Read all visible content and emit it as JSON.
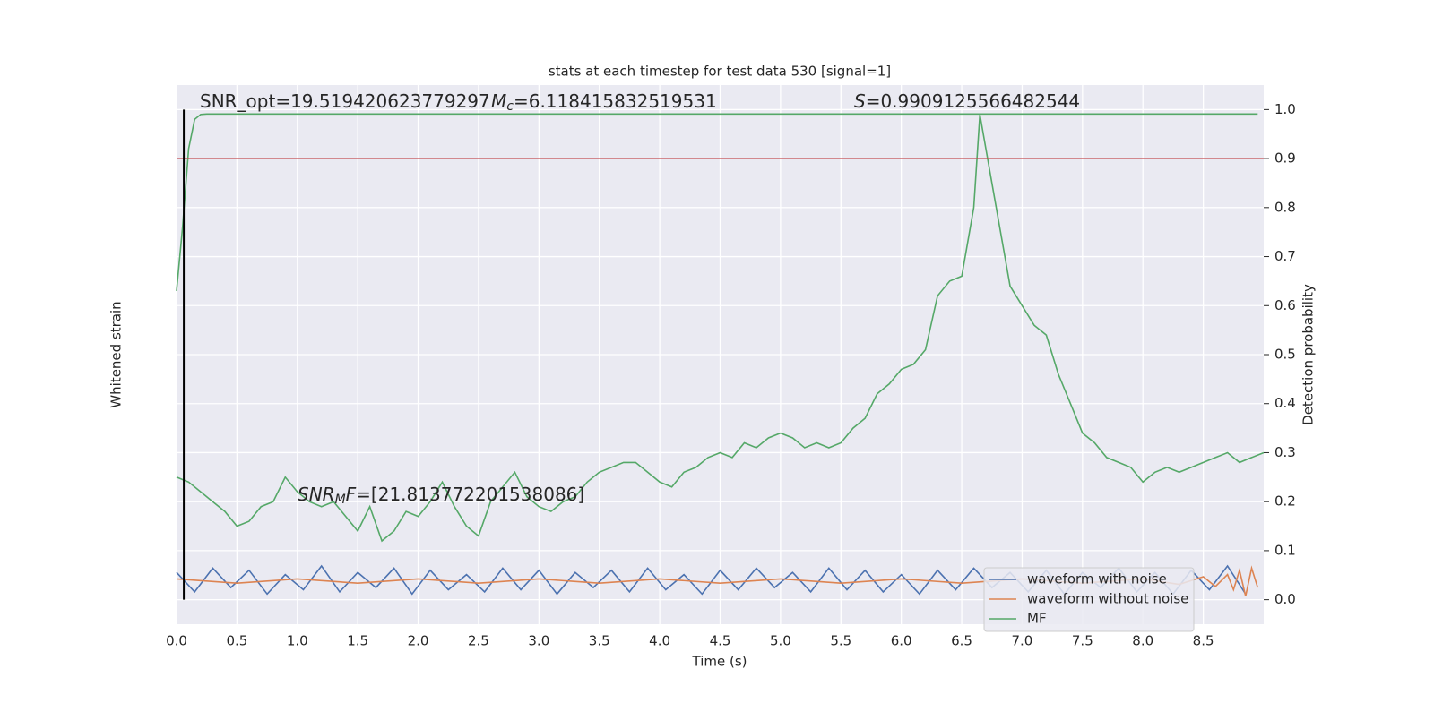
{
  "chart_data": {
    "type": "line",
    "title": "stats at each timestep for test data 530 [signal=1]",
    "xlabel": "Time (s)",
    "ylabel": "Detection probability",
    "y2label": "Whitened strain",
    "xlim": [
      0,
      9.0
    ],
    "xticks": [
      {
        "value": 0,
        "label": "0.0"
      },
      0.5,
      {
        "value": 1,
        "label": "1.0"
      },
      1.5,
      {
        "value": 2,
        "label": "2.0"
      },
      2.5,
      {
        "value": 3,
        "label": "3.0"
      },
      3.5,
      {
        "value": 4,
        "label": "4.0"
      },
      4.5,
      {
        "value": 5,
        "label": "5.0"
      },
      5.5,
      {
        "value": 6,
        "label": "6.0"
      },
      6.5,
      {
        "value": 7,
        "label": "7.0"
      },
      7.5,
      {
        "value": 8,
        "label": "8.0"
      },
      8.5
    ],
    "ylim": [
      -0.05,
      1.05
    ],
    "yticks": [
      {
        "value": 0,
        "label": "0.0"
      },
      0.1,
      0.2,
      0.3,
      0.4,
      0.5,
      0.6,
      0.7,
      0.8,
      0.9,
      {
        "value": 1,
        "label": "1.0"
      }
    ],
    "y2lim": [
      -2,
      23
    ],
    "grid": true,
    "legend": "lower right",
    "threshold": {
      "value": 0.9,
      "color": "#c44e52"
    },
    "marker_x": {
      "value": 0.06,
      "color": "#000000"
    },
    "cumulative": {
      "color": "#55a868",
      "x": [
        0,
        0.05,
        0.1,
        0.15,
        0.2,
        0.25,
        0.3,
        0.4,
        0.5,
        1,
        3,
        5,
        7,
        8.95
      ],
      "values": [
        0.63,
        0.76,
        0.92,
        0.98,
        0.99,
        0.991,
        0.991,
        0.991,
        0.991,
        0.991,
        0.991,
        0.991,
        0.991,
        0.991
      ]
    },
    "series": [
      {
        "name": "waveform with noise",
        "color": "#4c72b0",
        "axis": "y2",
        "x": [
          0,
          0.15,
          0.3,
          0.45,
          0.6,
          0.75,
          0.9,
          1.05,
          1.2,
          1.35,
          1.5,
          1.65,
          1.8,
          1.95,
          2.1,
          2.25,
          2.4,
          2.55,
          2.7,
          2.85,
          3,
          3.15,
          3.3,
          3.45,
          3.6,
          3.75,
          3.9,
          4.05,
          4.2,
          4.35,
          4.5,
          4.65,
          4.8,
          4.95,
          5.1,
          5.25,
          5.4,
          5.55,
          5.7,
          5.85,
          6,
          6.15,
          6.3,
          6.45,
          6.6,
          6.75,
          6.9,
          7.05,
          7.2,
          7.35,
          7.5,
          7.65,
          7.8,
          7.95,
          8.1,
          8.25,
          8.4,
          8.55,
          8.7,
          8.85
        ],
        "values": [
          0.4,
          -0.5,
          0.6,
          -0.3,
          0.5,
          -0.6,
          0.3,
          -0.4,
          0.7,
          -0.5,
          0.4,
          -0.3,
          0.6,
          -0.6,
          0.5,
          -0.4,
          0.3,
          -0.5,
          0.6,
          -0.4,
          0.5,
          -0.6,
          0.4,
          -0.3,
          0.5,
          -0.5,
          0.6,
          -0.4,
          0.3,
          -0.6,
          0.5,
          -0.4,
          0.6,
          -0.3,
          0.4,
          -0.5,
          0.6,
          -0.4,
          0.5,
          -0.5,
          0.3,
          -0.6,
          0.5,
          -0.4,
          0.6,
          -0.3,
          0.4,
          -0.5,
          0.5,
          -0.6,
          0.4,
          -0.3,
          0.6,
          -0.5,
          0.4,
          -0.6,
          0.5,
          -0.4,
          0.7,
          -0.6
        ]
      },
      {
        "name": "waveform without noise",
        "color": "#dd8452",
        "axis": "y2",
        "x": [
          0,
          0.5,
          1,
          1.5,
          2,
          2.5,
          3,
          3.5,
          4,
          4.5,
          5,
          5.5,
          6,
          6.5,
          7,
          7.5,
          8,
          8.3,
          8.5,
          8.6,
          8.7,
          8.75,
          8.8,
          8.85,
          8.9,
          8.95
        ],
        "values": [
          0.1,
          -0.1,
          0.1,
          -0.1,
          0.1,
          -0.1,
          0.1,
          -0.1,
          0.1,
          -0.1,
          0.1,
          -0.1,
          0.1,
          -0.1,
          0.1,
          -0.1,
          0.1,
          -0.15,
          0.2,
          -0.25,
          0.3,
          -0.4,
          0.5,
          -0.7,
          0.6,
          -0.3
        ]
      },
      {
        "name": "MF",
        "color": "#55a868",
        "x": [
          0,
          0.1,
          0.2,
          0.3,
          0.4,
          0.5,
          0.6,
          0.7,
          0.8,
          0.9,
          1,
          1.1,
          1.2,
          1.3,
          1.4,
          1.5,
          1.6,
          1.7,
          1.8,
          1.9,
          2,
          2.1,
          2.2,
          2.3,
          2.4,
          2.5,
          2.6,
          2.7,
          2.8,
          2.9,
          3,
          3.1,
          3.2,
          3.3,
          3.4,
          3.5,
          3.6,
          3.7,
          3.8,
          3.9,
          4,
          4.1,
          4.2,
          4.3,
          4.4,
          4.5,
          4.6,
          4.7,
          4.8,
          4.9,
          5,
          5.1,
          5.2,
          5.3,
          5.4,
          5.5,
          5.6,
          5.7,
          5.8,
          5.9,
          6,
          6.1,
          6.2,
          6.3,
          6.4,
          6.5,
          6.6,
          6.65,
          6.7,
          6.8,
          6.9,
          7,
          7.1,
          7.2,
          7.3,
          7.4,
          7.5,
          7.6,
          7.7,
          7.8,
          7.9,
          8,
          8.1,
          8.2,
          8.3,
          8.4,
          8.5,
          8.6,
          8.7,
          8.8,
          8.9,
          9
        ],
        "values": [
          0.25,
          0.24,
          0.22,
          0.2,
          0.18,
          0.15,
          0.16,
          0.19,
          0.2,
          0.25,
          0.22,
          0.2,
          0.19,
          0.2,
          0.17,
          0.14,
          0.19,
          0.12,
          0.14,
          0.18,
          0.17,
          0.2,
          0.24,
          0.19,
          0.15,
          0.13,
          0.2,
          0.23,
          0.26,
          0.21,
          0.19,
          0.18,
          0.2,
          0.21,
          0.24,
          0.26,
          0.27,
          0.28,
          0.28,
          0.26,
          0.24,
          0.23,
          0.26,
          0.27,
          0.29,
          0.3,
          0.29,
          0.32,
          0.31,
          0.33,
          0.34,
          0.33,
          0.31,
          0.32,
          0.31,
          0.32,
          0.35,
          0.37,
          0.42,
          0.44,
          0.47,
          0.48,
          0.51,
          0.62,
          0.65,
          0.66,
          0.8,
          0.99,
          0.92,
          0.78,
          0.64,
          0.6,
          0.56,
          0.54,
          0.46,
          0.4,
          0.34,
          0.32,
          0.29,
          0.28,
          0.27,
          0.24,
          0.26,
          0.27,
          0.26,
          0.27,
          0.28,
          0.29,
          0.3,
          0.28,
          0.29,
          0.3
        ]
      }
    ],
    "annotations": [
      {
        "parts": [
          {
            "text": "SNR_opt=19.519420623779297"
          }
        ]
      },
      {
        "parts": [
          {
            "text": "M",
            "style": "italic"
          },
          {
            "text": "c",
            "style": "sub"
          },
          {
            "text": "=6.118415832519531"
          }
        ]
      },
      {
        "parts": [
          {
            "text": "S",
            "style": "italic"
          },
          {
            "text": "=0.9909125566482544"
          }
        ]
      },
      {
        "parts": [
          {
            "text": "SNR",
            "style": "italic"
          },
          {
            "text": "M",
            "style": "sub"
          },
          {
            "text": "F",
            "style": "italic"
          },
          {
            "text": "=[21.813772201538086]"
          }
        ]
      }
    ]
  }
}
